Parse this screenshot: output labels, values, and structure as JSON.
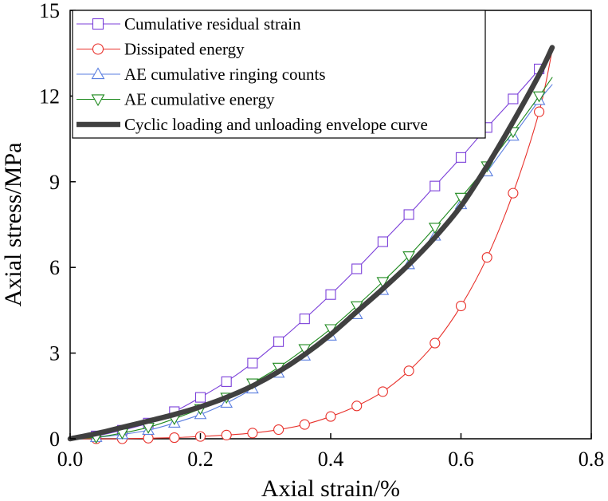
{
  "chart_data": {
    "type": "line",
    "title": "",
    "xlabel": "Axial strain/%",
    "ylabel": "Axial stress/MPa",
    "xlim": [
      0.0,
      0.8
    ],
    "ylim": [
      0,
      15
    ],
    "x_ticks": [
      "0.0",
      "0.2",
      "0.4",
      "0.6",
      "0.8"
    ],
    "y_ticks": [
      "0",
      "3",
      "6",
      "9",
      "12",
      "15"
    ],
    "grid": false,
    "legend_position": "top-left",
    "series": [
      {
        "name": "Cumulative residual strain",
        "color": "#7B3FD9",
        "marker": "square",
        "x": [
          0.0,
          0.04,
          0.08,
          0.12,
          0.16,
          0.2,
          0.24,
          0.28,
          0.32,
          0.36,
          0.4,
          0.44,
          0.48,
          0.52,
          0.56,
          0.6,
          0.64,
          0.68,
          0.72,
          0.74
        ],
        "y": [
          0.0,
          0.1,
          0.3,
          0.55,
          0.95,
          1.45,
          2.0,
          2.65,
          3.4,
          4.2,
          5.05,
          5.95,
          6.9,
          7.85,
          8.85,
          9.85,
          10.9,
          11.9,
          12.95,
          13.7
        ]
      },
      {
        "name": "Dissipated energy",
        "color": "#E8302A",
        "marker": "circle",
        "x": [
          0.0,
          0.04,
          0.08,
          0.12,
          0.16,
          0.2,
          0.24,
          0.28,
          0.32,
          0.36,
          0.4,
          0.44,
          0.48,
          0.52,
          0.56,
          0.6,
          0.64,
          0.68,
          0.72,
          0.74
        ],
        "y": [
          0.0,
          0.0,
          0.0,
          0.02,
          0.04,
          0.08,
          0.13,
          0.2,
          0.32,
          0.5,
          0.78,
          1.15,
          1.65,
          2.38,
          3.35,
          4.65,
          6.35,
          8.6,
          11.45,
          13.6
        ]
      },
      {
        "name": "AE cumulative ringing counts",
        "color": "#5A7EE0",
        "marker": "triangle-up",
        "x": [
          0.0,
          0.04,
          0.08,
          0.12,
          0.16,
          0.2,
          0.24,
          0.28,
          0.32,
          0.36,
          0.4,
          0.44,
          0.48,
          0.52,
          0.56,
          0.6,
          0.64,
          0.68,
          0.72,
          0.74
        ],
        "y": [
          0.0,
          0.05,
          0.15,
          0.3,
          0.55,
          0.85,
          1.25,
          1.75,
          2.3,
          2.9,
          3.6,
          4.35,
          5.2,
          6.1,
          7.1,
          8.2,
          9.35,
          10.6,
          11.85,
          12.4
        ]
      },
      {
        "name": "AE cumulative energy",
        "color": "#1F8A1F",
        "marker": "triangle-down",
        "x": [
          0.0,
          0.04,
          0.08,
          0.12,
          0.16,
          0.2,
          0.24,
          0.28,
          0.32,
          0.36,
          0.4,
          0.44,
          0.48,
          0.52,
          0.56,
          0.6,
          0.64,
          0.68,
          0.72,
          0.74
        ],
        "y": [
          0.0,
          0.05,
          0.2,
          0.4,
          0.7,
          1.05,
          1.45,
          1.95,
          2.5,
          3.15,
          3.85,
          4.65,
          5.5,
          6.4,
          7.4,
          8.45,
          9.55,
          10.75,
          12.0,
          12.65
        ]
      },
      {
        "name": "Cyclic loading and unloading envelope curve",
        "color": "#404040",
        "marker": "none",
        "line_width": "thick",
        "x": [
          0.0,
          0.04,
          0.08,
          0.12,
          0.16,
          0.2,
          0.24,
          0.28,
          0.32,
          0.36,
          0.4,
          0.44,
          0.48,
          0.52,
          0.56,
          0.6,
          0.64,
          0.68,
          0.72,
          0.74
        ],
        "y": [
          0.0,
          0.18,
          0.4,
          0.62,
          0.85,
          1.12,
          1.45,
          1.85,
          2.35,
          2.95,
          3.65,
          4.45,
          5.25,
          6.1,
          7.05,
          8.15,
          9.55,
          11.1,
          12.75,
          13.7
        ]
      }
    ]
  }
}
